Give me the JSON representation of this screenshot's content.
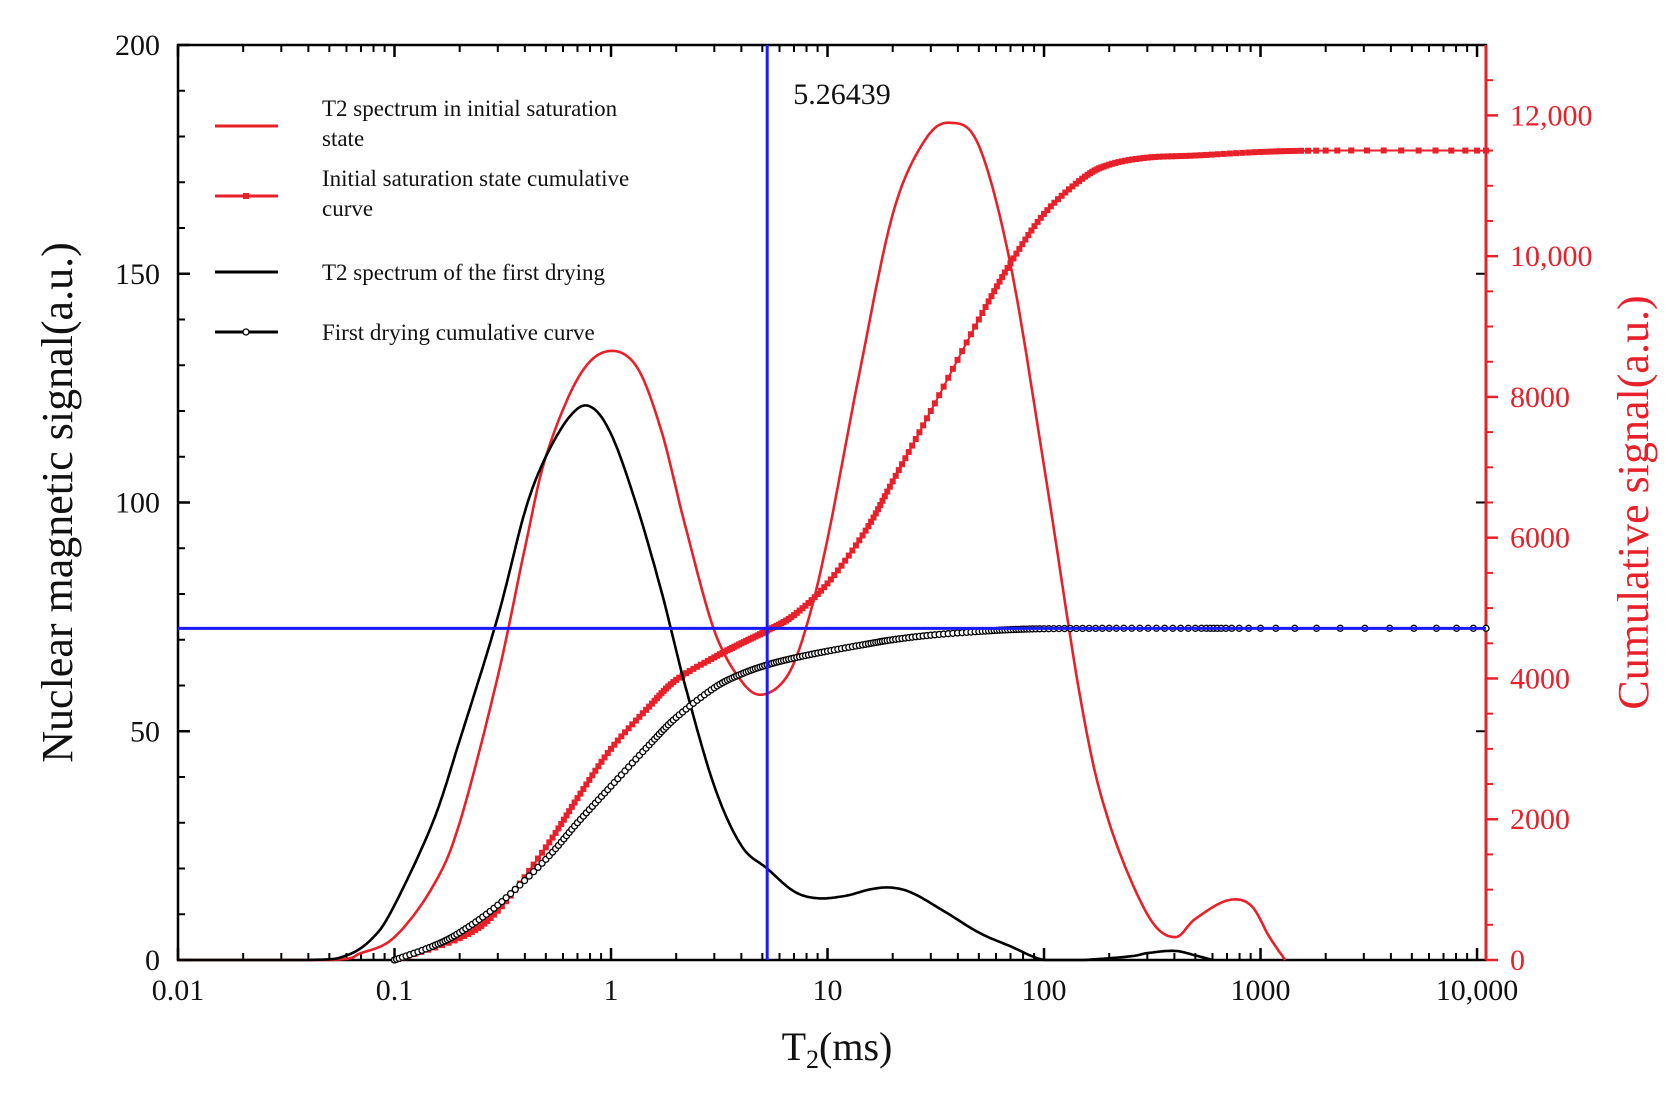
{
  "colors": {
    "red": "#e8202a",
    "black": "#000000",
    "blue": "#1a1aff",
    "axis": "#000000"
  },
  "chart_data": {
    "type": "line",
    "xscale": "log",
    "xlabel_main": "T",
    "xlabel_sub": "2",
    "xlabel_unit": "(ms)",
    "ylabel_left": "Nuclear magnetic signal(a.u.)",
    "ylabel_right": "Cumulative signal(a.u.)",
    "xlim": [
      0.01,
      11000
    ],
    "ylim_left": [
      0,
      200
    ],
    "ylim_right": [
      0,
      13000
    ],
    "x_ticks": [
      0.01,
      0.1,
      1,
      10,
      100,
      1000,
      10000
    ],
    "x_tick_labels": [
      "0.01",
      "0.1",
      "1",
      "10",
      "100",
      "1000",
      "10,000"
    ],
    "y_left_ticks": [
      0,
      50,
      100,
      150,
      200
    ],
    "y_left_tick_labels": [
      "0",
      "50",
      "100",
      "150",
      "200"
    ],
    "y_right_ticks": [
      0,
      2000,
      4000,
      6000,
      8000,
      10000,
      12000
    ],
    "y_right_tick_labels": [
      "0",
      "2000",
      "4000",
      "6000",
      "8000",
      "10,000",
      "12,000"
    ],
    "annotation": {
      "text": "5.26439",
      "x": 5.26439,
      "y_left": 72.5
    },
    "legend": [
      {
        "label": "T2 spectrum in initial saturation state",
        "line1": "T2 spectrum in initial saturation",
        "line2": "state",
        "color": "#e8202a",
        "marker": "none"
      },
      {
        "label": "Initial saturation state cumulative curve",
        "line1": "Initial saturation state cumulative",
        "line2": "curve",
        "color": "#e8202a",
        "marker": "square"
      },
      {
        "label": "T2 spectrum of the first drying",
        "line1": "T2 spectrum of the first drying",
        "line2": "",
        "color": "#000000",
        "marker": "none"
      },
      {
        "label": "First drying cumulative curve",
        "line1": "First drying cumulative curve",
        "line2": "",
        "color": "#000000",
        "marker": "circle"
      }
    ],
    "series": [
      {
        "name": "T2 spectrum in initial saturation state",
        "axis": "left",
        "color": "#e8202a",
        "x": [
          0.01,
          0.05,
          0.07,
          0.1,
          0.15,
          0.2,
          0.3,
          0.4,
          0.5,
          0.7,
          0.95,
          1.3,
          1.7,
          2.2,
          3,
          4,
          5,
          6.5,
          8,
          10,
          14,
          20,
          28,
          37,
          50,
          70,
          100,
          150,
          200,
          300,
          400,
          500,
          700,
          900,
          1100,
          1300
        ],
        "y": [
          0,
          0,
          1.5,
          5,
          16,
          30,
          62,
          90,
          110,
          127,
          133,
          130,
          116,
          95,
          72,
          61,
          58,
          62,
          73,
          92,
          128,
          163,
          179,
          183,
          178,
          152,
          108,
          55,
          30,
          10,
          5,
          9,
          13,
          12,
          5,
          0
        ]
      },
      {
        "name": "Initial saturation state cumulative curve",
        "axis": "right",
        "color": "#e8202a",
        "x": [
          0.1,
          0.2,
          0.3,
          0.5,
          0.7,
          1,
          1.5,
          2,
          3,
          4,
          5.26,
          7,
          10,
          15,
          20,
          30,
          50,
          70,
          100,
          150,
          200,
          300,
          500,
          1000,
          2000,
          11000
        ],
        "y": [
          0,
          310,
          700,
          1600,
          2300,
          3000,
          3600,
          3980,
          4300,
          4500,
          4680,
          4900,
          5350,
          6100,
          6800,
          7800,
          9100,
          9900,
          10600,
          11100,
          11300,
          11400,
          11430,
          11480,
          11500,
          11500
        ]
      },
      {
        "name": "T2 spectrum of the first drying",
        "axis": "left",
        "color": "#000000",
        "x": [
          0.01,
          0.04,
          0.06,
          0.08,
          0.1,
          0.15,
          0.2,
          0.3,
          0.4,
          0.5,
          0.65,
          0.8,
          1,
          1.3,
          1.7,
          2.2,
          3,
          4,
          5.26,
          7,
          9,
          12,
          16,
          20,
          25,
          35,
          50,
          70,
          100,
          150,
          250,
          300,
          400,
          500,
          600
        ],
        "y": [
          0,
          0,
          1,
          5,
          12,
          30,
          48,
          75,
          98,
          110,
          119,
          121,
          115,
          100,
          81,
          60,
          38,
          25,
          20,
          15,
          13.5,
          14,
          15.5,
          15.8,
          14.5,
          10.5,
          6,
          3,
          0,
          0,
          0.8,
          1.5,
          2,
          1,
          0
        ]
      },
      {
        "name": "First drying cumulative curve",
        "axis": "left",
        "color": "#000000",
        "x": [
          0.1,
          0.15,
          0.2,
          0.3,
          0.5,
          0.7,
          1,
          1.5,
          2,
          3,
          4,
          5.26,
          7,
          10,
          15,
          20,
          30,
          50,
          70,
          100,
          200,
          500,
          1000,
          11000
        ],
        "y": [
          0,
          3,
          6,
          12,
          22,
          30,
          38,
          47,
          53,
          59.5,
          62.5,
          64.5,
          66,
          67.5,
          69,
          70,
          71,
          71.8,
          72.2,
          72.4,
          72.5,
          72.5,
          72.5,
          72.5
        ]
      }
    ],
    "reference_lines": {
      "vertical_x": 5.26439,
      "horizontal_y_left": 72.5
    }
  }
}
